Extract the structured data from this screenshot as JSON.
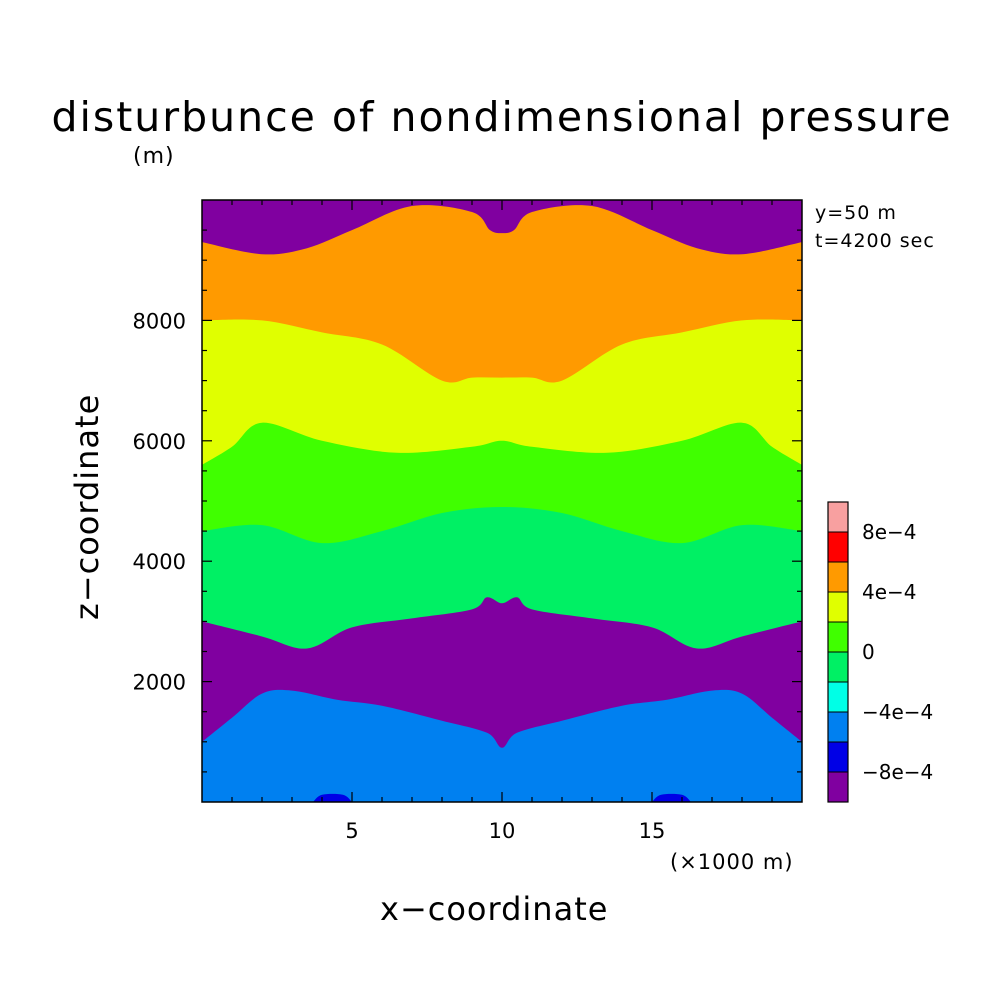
{
  "chart_data": {
    "type": "contour",
    "title": "disturbunce of nondimensional pressure",
    "xlabel": "x−coordinate",
    "x_unit": "(×1000 m)",
    "ylabel": "z−coordinate",
    "y_unit": "(m)",
    "xlim": [
      0,
      20
    ],
    "ylim": [
      0,
      10000
    ],
    "x_ticks": [
      {
        "value": 5,
        "label": "5"
      },
      {
        "value": 10,
        "label": "10"
      },
      {
        "value": 15,
        "label": "15"
      }
    ],
    "y_ticks": [
      {
        "value": 2000,
        "label": "2000"
      },
      {
        "value": 4000,
        "label": "4000"
      },
      {
        "value": 6000,
        "label": "6000"
      },
      {
        "value": 8000,
        "label": "8000"
      }
    ],
    "annotations": [
      "y=50 m",
      "t=4200 sec"
    ],
    "colorbar": {
      "levels": [
        -0.001,
        -0.0008,
        -0.0006,
        -0.0004,
        -0.0002,
        0,
        0.0002,
        0.0004,
        0.0006,
        0.0008,
        0.001
      ],
      "colors": [
        "#8000a0",
        "#0000e6",
        "#0080f0",
        "#00ffe6",
        "#00f064",
        "#40ff00",
        "#e0ff00",
        "#ff9a00",
        "#ff0000",
        "#f8a0a0"
      ],
      "tick_labels": [
        {
          "value": -0.0008,
          "label": "−8e−4"
        },
        {
          "value": -0.0004,
          "label": "−4e−4"
        },
        {
          "value": 0,
          "label": "0"
        },
        {
          "value": 0.0004,
          "label": "4e−4"
        },
        {
          "value": 0.0008,
          "label": "8e−4"
        }
      ]
    },
    "contour_boundaries": [
      {
        "lower_level": -0.0008,
        "points": [
          [
            3.7,
            0
          ],
          [
            4.0,
            120
          ],
          [
            4.7,
            120
          ],
          [
            5.0,
            0
          ],
          [
            15.0,
            0
          ],
          [
            15.3,
            120
          ],
          [
            16.0,
            120
          ],
          [
            16.3,
            0
          ]
        ]
      },
      {
        "lower_level": -0.0006,
        "points": [
          [
            0,
            1000
          ],
          [
            1.0,
            1400
          ],
          [
            2.0,
            1800
          ],
          [
            3.0,
            1850
          ],
          [
            4.5,
            1700
          ],
          [
            6.0,
            1600
          ],
          [
            8.0,
            1350
          ],
          [
            9.5,
            1150
          ],
          [
            10.0,
            900
          ],
          [
            10.5,
            1150
          ],
          [
            12.0,
            1350
          ],
          [
            14.0,
            1600
          ],
          [
            15.5,
            1700
          ],
          [
            17.0,
            1850
          ],
          [
            18.0,
            1800
          ],
          [
            19.0,
            1400
          ],
          [
            20.0,
            1000
          ]
        ]
      },
      {
        "lower_level": -0.0004,
        "points": [
          [
            0,
            3000
          ],
          [
            2.0,
            2750
          ],
          [
            3.5,
            2550
          ],
          [
            5.0,
            2900
          ],
          [
            7.0,
            3050
          ],
          [
            9.0,
            3200
          ],
          [
            9.5,
            3400
          ],
          [
            10.0,
            3300
          ],
          [
            10.5,
            3400
          ],
          [
            11.0,
            3200
          ],
          [
            13.0,
            3050
          ],
          [
            15.0,
            2900
          ],
          [
            16.5,
            2550
          ],
          [
            18.0,
            2750
          ],
          [
            20.0,
            3000
          ]
        ]
      },
      {
        "lower_level": -0.0002,
        "points": [
          [
            0,
            4500
          ],
          [
            2.0,
            4600
          ],
          [
            4.0,
            4300
          ],
          [
            6.0,
            4500
          ],
          [
            8.0,
            4800
          ],
          [
            10.0,
            4900
          ],
          [
            12.0,
            4800
          ],
          [
            14.0,
            4500
          ],
          [
            16.0,
            4300
          ],
          [
            18.0,
            4600
          ],
          [
            20.0,
            4500
          ]
        ]
      },
      {
        "lower_level": 0,
        "points": [
          [
            0,
            5600
          ],
          [
            1.0,
            5900
          ],
          [
            2.0,
            6300
          ],
          [
            4.0,
            6000
          ],
          [
            6.5,
            5800
          ],
          [
            9.0,
            5900
          ],
          [
            10.0,
            6000
          ],
          [
            11.0,
            5900
          ],
          [
            13.5,
            5800
          ],
          [
            16.0,
            6000
          ],
          [
            18.0,
            6300
          ],
          [
            19.0,
            5900
          ],
          [
            20.0,
            5600
          ]
        ]
      },
      {
        "lower_level": 0.0002,
        "points": [
          [
            0,
            8000
          ],
          [
            2.0,
            8000
          ],
          [
            4.0,
            7800
          ],
          [
            6.0,
            7600
          ],
          [
            8.0,
            7000
          ],
          [
            9.0,
            7050
          ],
          [
            10.0,
            7050
          ],
          [
            11.0,
            7050
          ],
          [
            12.0,
            7000
          ],
          [
            14.0,
            7600
          ],
          [
            16.0,
            7800
          ],
          [
            18.0,
            8000
          ],
          [
            20.0,
            8000
          ]
        ]
      },
      {
        "lower_level": 0.0004,
        "points": [
          [
            0,
            9300
          ],
          [
            2.0,
            9100
          ],
          [
            3.5,
            9200
          ],
          [
            5.0,
            9500
          ],
          [
            7.0,
            9900
          ],
          [
            9.0,
            9800
          ],
          [
            9.6,
            9500
          ],
          [
            10.0,
            9450
          ],
          [
            10.4,
            9500
          ],
          [
            11.0,
            9800
          ],
          [
            13.0,
            9900
          ],
          [
            15.0,
            9500
          ],
          [
            16.5,
            9200
          ],
          [
            18.0,
            9100
          ],
          [
            20.0,
            9300
          ]
        ]
      }
    ]
  }
}
